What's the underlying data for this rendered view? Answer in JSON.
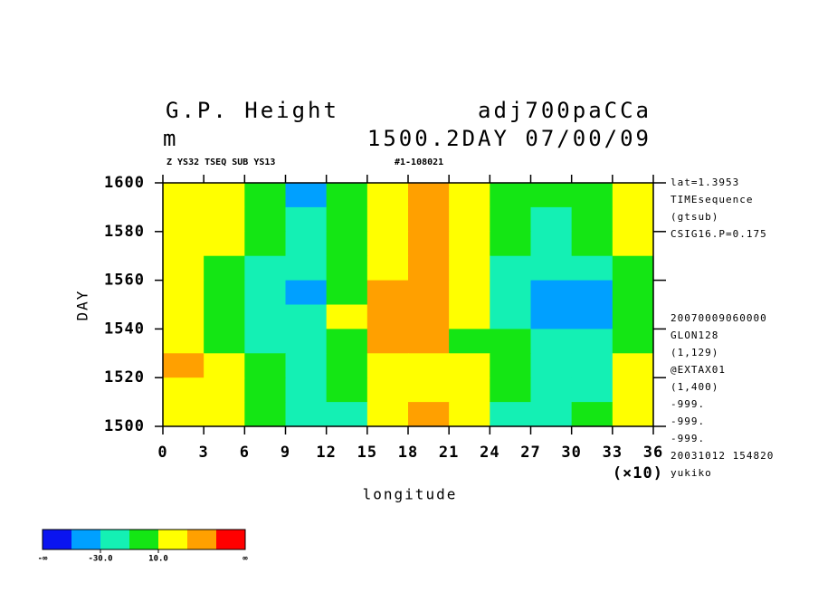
{
  "chart_data": {
    "type": "heatmap",
    "title": "G.P. Height",
    "title_right": "adj700paCCa",
    "subtitle": "m",
    "subtitle_right": "1500.2DAY 07/00/09",
    "header_left": "Z YS32 TSEQ SUB YS13",
    "header_right": "#1-108021",
    "x_label": "longitude",
    "x_scale_label": "(×10)",
    "y_label": "DAY",
    "xlim": [
      0,
      36
    ],
    "xticks": [
      0,
      3,
      6,
      9,
      12,
      15,
      18,
      21,
      24,
      27,
      30,
      33,
      36
    ],
    "ylim": [
      1500,
      1600
    ],
    "yticks": [
      1500,
      1520,
      1540,
      1560,
      1580,
      1600
    ],
    "x": [
      1.5,
      4.5,
      7.5,
      10.5,
      13.5,
      16.5,
      19.5,
      22.5,
      25.5,
      28.5,
      31.5,
      34.5
    ],
    "y": [
      1595,
      1585,
      1575,
      1565,
      1555,
      1545,
      1535,
      1525,
      1515,
      1505
    ],
    "z": [
      [
        30,
        20,
        0,
        -40,
        0,
        20,
        35,
        15,
        0,
        -5,
        0,
        20
      ],
      [
        25,
        15,
        0,
        -15,
        0,
        30,
        45,
        25,
        0,
        -10,
        0,
        20
      ],
      [
        25,
        15,
        -5,
        -20,
        -5,
        20,
        40,
        20,
        0,
        -15,
        -5,
        15
      ],
      [
        20,
        10,
        -10,
        -25,
        0,
        25,
        35,
        15,
        -10,
        -25,
        -15,
        10
      ],
      [
        25,
        10,
        -10,
        -30,
        10,
        40,
        45,
        20,
        -20,
        -45,
        -30,
        5
      ],
      [
        15,
        5,
        -15,
        -20,
        15,
        35,
        40,
        15,
        -10,
        -30,
        -45,
        0
      ],
      [
        25,
        10,
        -10,
        -20,
        5,
        35,
        35,
        10,
        -5,
        -20,
        -20,
        5
      ],
      [
        35,
        15,
        -5,
        -15,
        0,
        25,
        30,
        15,
        0,
        -10,
        -15,
        20
      ],
      [
        25,
        15,
        0,
        -10,
        0,
        20,
        30,
        20,
        0,
        -15,
        -10,
        15
      ],
      [
        25,
        15,
        -5,
        -20,
        -15,
        15,
        35,
        15,
        -25,
        -15,
        -5,
        15
      ]
    ],
    "colorbar": {
      "levels": [
        -50,
        -30,
        -10,
        10,
        30,
        50
      ],
      "colors": [
        "#0a14f0",
        "#00a0ff",
        "#14f0b4",
        "#14e614",
        "#ffff00",
        "#ffa000",
        "#ff0000"
      ],
      "ticks": [
        {
          "value": -30,
          "label": "-30.0"
        },
        {
          "value": 10,
          "label": "10.0"
        }
      ],
      "low_label": "-∞",
      "high_label": "∞"
    },
    "notes": [
      "lat=1.3953",
      "TIMEsequence",
      "(gtsub)",
      "CSIG16.P=0.175"
    ],
    "info": [
      "20070009060000",
      "GLON128",
      "(1,129)",
      "@EXTAX01",
      "(1,400)",
      "-999.",
      "-999.",
      "-999.",
      "20031012 154820",
      "yukiko"
    ]
  }
}
